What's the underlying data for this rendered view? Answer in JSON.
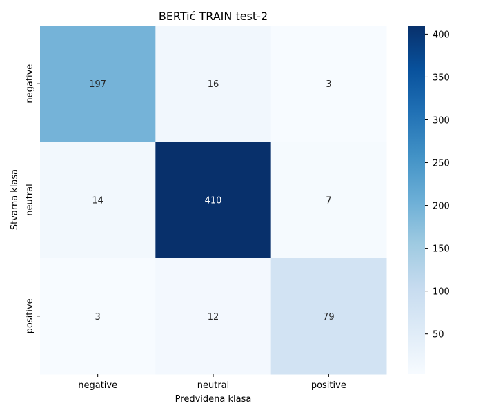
{
  "chart_data": {
    "type": "heatmap",
    "title": "BERTić TRAIN test-2",
    "xlabel": "Predviđena klasa",
    "ylabel": "Stvarna klasa",
    "x_categories": [
      "negative",
      "neutral",
      "positive"
    ],
    "y_categories": [
      "negative",
      "neutral",
      "positive"
    ],
    "values": [
      [
        197,
        16,
        3
      ],
      [
        14,
        410,
        7
      ],
      [
        3,
        12,
        79
      ]
    ],
    "colormap": "Blues",
    "color_range": [
      3,
      410
    ],
    "colorbar_ticks": [
      50,
      100,
      150,
      200,
      250,
      300,
      350,
      400
    ],
    "colors": [
      "#f7fbff",
      "#deebf7",
      "#c6dbef",
      "#9ecae1",
      "#6baed6",
      "#4292c6",
      "#2171b5",
      "#08519c",
      "#08306b"
    ]
  }
}
